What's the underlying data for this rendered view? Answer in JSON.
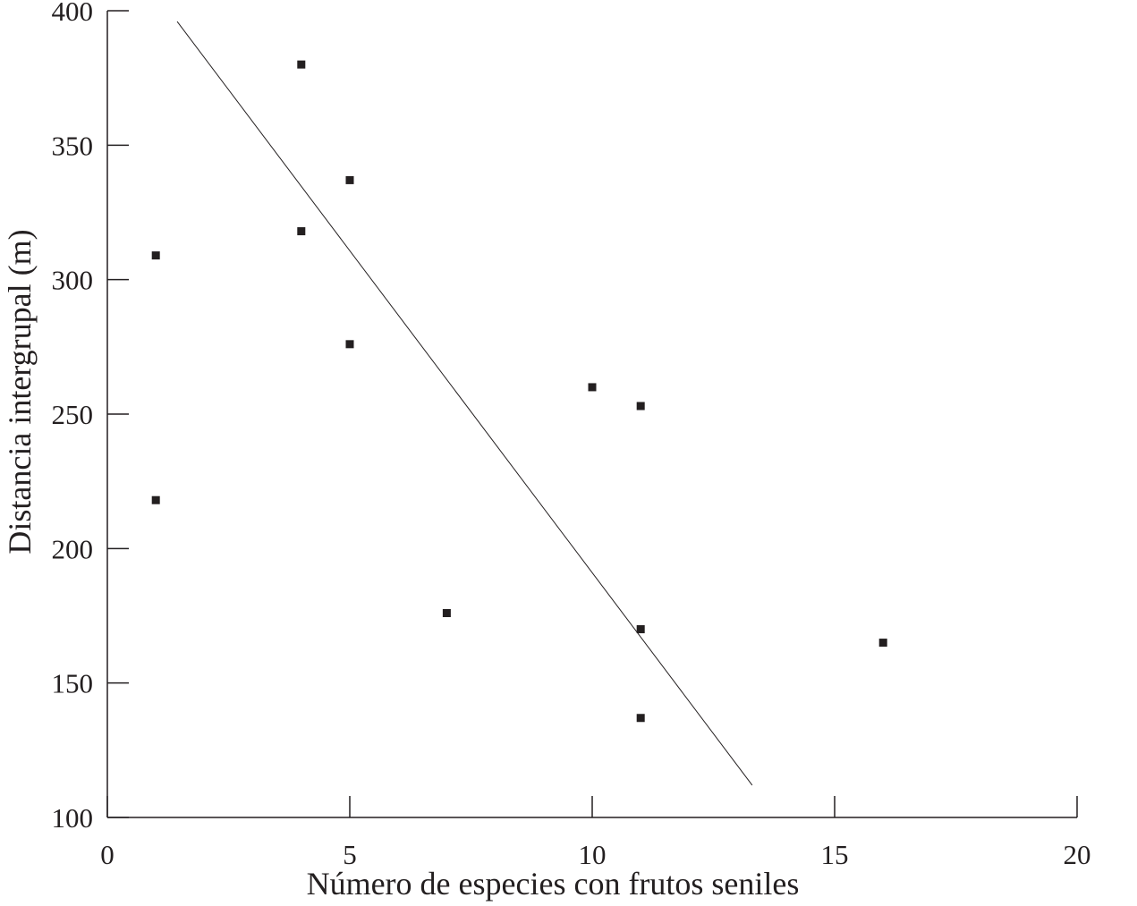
{
  "chart_data": {
    "type": "scatter",
    "x_label": "Número de especies con frutos seniles",
    "y_label": "Distancia intergrupal (m)",
    "x": [
      1,
      1,
      4,
      4,
      5,
      5,
      7,
      10,
      11,
      11,
      11,
      16
    ],
    "y": [
      309,
      218,
      380,
      318,
      337,
      276,
      176,
      260,
      253,
      170,
      137,
      165
    ],
    "color": "#231f20",
    "trend_line": {
      "x": [
        1.44,
        13.3
      ],
      "y": [
        396,
        112
      ],
      "color": "#231f20"
    },
    "xlim": [
      0,
      20
    ],
    "xticks": [
      0,
      5,
      10,
      15,
      20
    ],
    "ylim": [
      100,
      400
    ],
    "yticks": [
      100,
      150,
      200,
      250,
      300,
      350,
      400
    ],
    "grid": false
  }
}
